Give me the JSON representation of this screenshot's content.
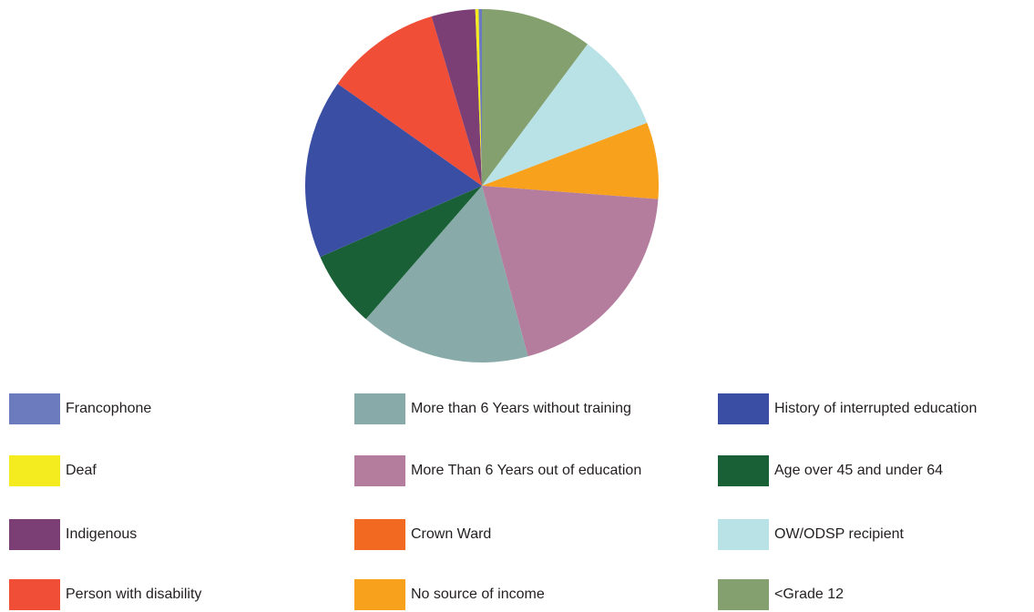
{
  "chart_data": {
    "type": "pie",
    "title": "",
    "legend_placement": "bottom",
    "slices": [
      {
        "label": "<Grade 12",
        "value": 10.2,
        "color": "#84a06f"
      },
      {
        "label": "OW/ODSP recipient",
        "value": 9.0,
        "color": "#b8e2e6"
      },
      {
        "label": "No source of income",
        "value": 7.0,
        "color": "#f7a11d"
      },
      {
        "label": "More Than 6 Years out of education",
        "value": 19.6,
        "color": "#b47d9e"
      },
      {
        "label": "More than 6 Years without training",
        "value": 15.6,
        "color": "#88aba9"
      },
      {
        "label": "Age over 45 and under 64",
        "value": 7.0,
        "color": "#196036"
      },
      {
        "label": "History of interrupted education",
        "value": 16.4,
        "color": "#3a4fa3"
      },
      {
        "label": "Person with disability",
        "value": 10.6,
        "color": "#f04e37"
      },
      {
        "label": "Indigenous",
        "value": 4.0,
        "color": "#7b3f76"
      },
      {
        "label": "Deaf",
        "value": 0.3,
        "color": "#f5ec1f"
      },
      {
        "label": "Francophone",
        "value": 0.3,
        "color": "#6b7bbd"
      },
      {
        "label": "Crown Ward",
        "value": 0.0,
        "color": "#f26a22"
      }
    ]
  },
  "legend": {
    "items": [
      {
        "label": "Francophone",
        "color": "#6b7bbd"
      },
      {
        "label": "Deaf",
        "color": "#f5ec1f"
      },
      {
        "label": "Indigenous",
        "color": "#7b3f76"
      },
      {
        "label": "Person with disability",
        "color": "#f04e37"
      },
      {
        "label": "More than 6 Years without training",
        "color": "#88aba9"
      },
      {
        "label": "More Than 6 Years out of education",
        "color": "#b47d9e"
      },
      {
        "label": "Crown Ward",
        "color": "#f26a22"
      },
      {
        "label": "No source of income",
        "color": "#f7a11d"
      },
      {
        "label": "History of interrupted education",
        "color": "#3a4fa3"
      },
      {
        "label": "Age over 45 and under 64",
        "color": "#196036"
      },
      {
        "label": "OW/ODSP recipient",
        "color": "#b8e2e6"
      },
      {
        "label": "<Grade 12",
        "color": "#84a06f"
      }
    ]
  }
}
